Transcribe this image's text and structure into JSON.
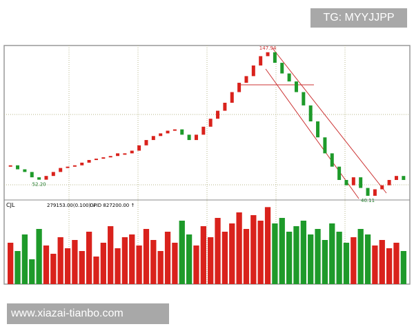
{
  "watermark": "TG: MYYJJPP",
  "footer": "www.xiazai-tianbo.com",
  "chart_data": {
    "type": "candlestick",
    "up_color": "#d9221c",
    "down_color": "#1e9a2a",
    "ylim": [
      38,
      153
    ],
    "grid": true,
    "close": [
      63,
      60,
      58,
      54,
      52.2,
      55,
      58,
      61,
      62,
      63,
      65,
      67,
      68,
      69,
      70,
      72,
      72,
      74,
      78,
      82,
      85,
      87,
      89,
      90,
      86,
      82,
      86,
      92,
      98,
      104,
      110,
      118,
      125,
      130,
      138,
      145,
      147.94,
      140,
      132,
      126,
      118,
      108,
      96,
      84,
      72,
      62,
      52,
      48,
      54,
      46,
      40.11,
      45,
      48,
      52,
      55,
      52
    ],
    "annotations": [
      {
        "value": 147.94,
        "label": "147.94"
      },
      {
        "value": 52.2,
        "label": "52.20"
      },
      {
        "value": 40.11,
        "label": "40.11"
      }
    ],
    "volume": {
      "name": "CJL",
      "readings": [
        "279153.00(0.100) ↓",
        "OPID  827200.00 ↑"
      ],
      "ylim": [
        0,
        300000
      ],
      "values": [
        150000,
        120000,
        180000,
        90000,
        200000,
        140000,
        110000,
        170000,
        130000,
        160000,
        120000,
        190000,
        100000,
        150000,
        210000,
        130000,
        170000,
        180000,
        140000,
        200000,
        160000,
        120000,
        190000,
        150000,
        230000,
        180000,
        140000,
        210000,
        170000,
        240000,
        190000,
        220000,
        260000,
        200000,
        250000,
        230000,
        279153,
        220000,
        240000,
        190000,
        210000,
        230000,
        180000,
        200000,
        160000,
        220000,
        190000,
        150000,
        170000,
        200000,
        180000,
        140000,
        160000,
        130000,
        150000,
        120000
      ]
    }
  }
}
